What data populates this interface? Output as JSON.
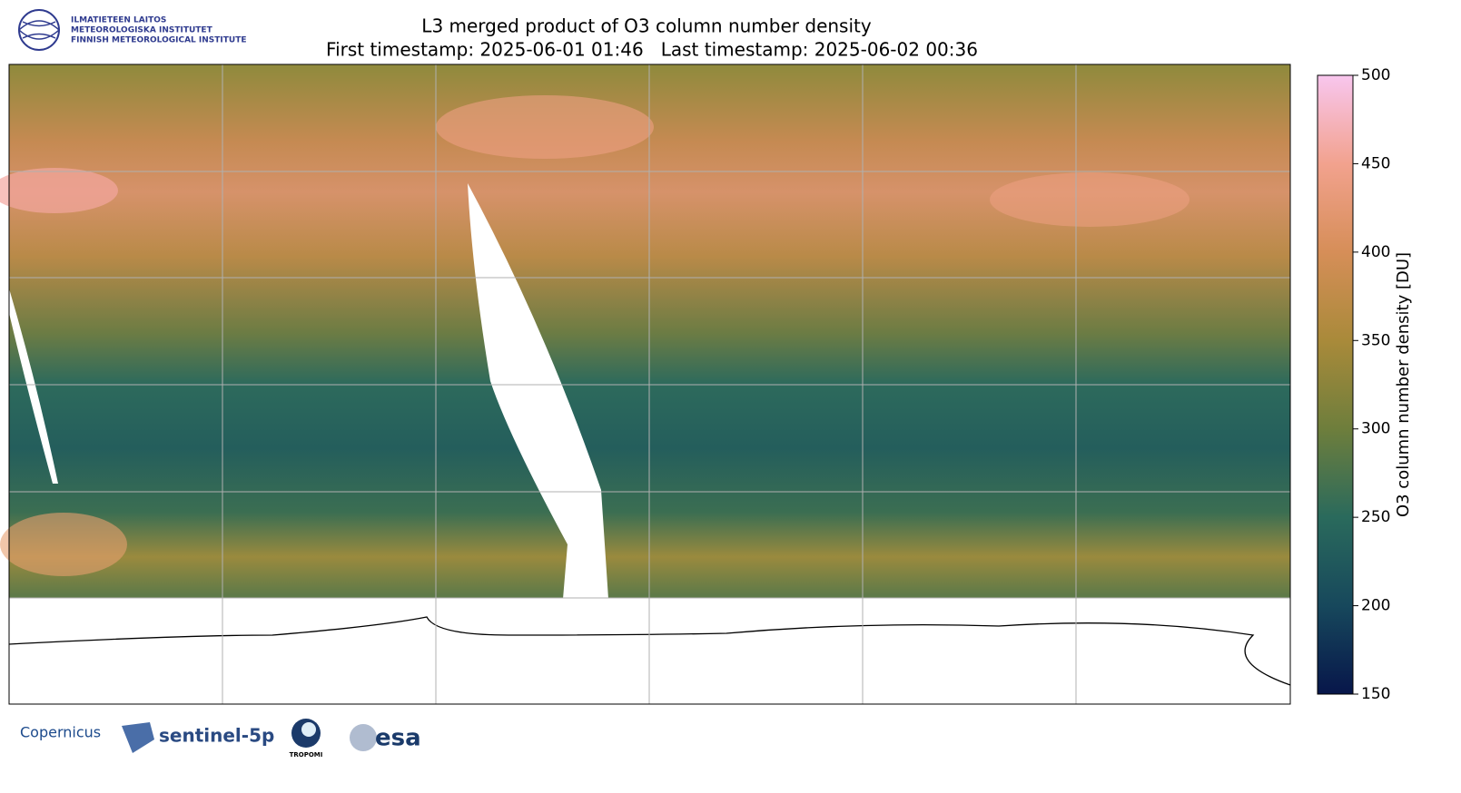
{
  "header": {
    "logo_lines": [
      "ILMATIETEEN LAITOS",
      "METEOROLOGISKA INSTITUTET",
      "FINNISH METEOROLOGICAL INSTITUTE"
    ]
  },
  "map": {
    "title": "L3 merged product of O3 column number density",
    "subtitle": "First timestamp: 2025-06-01 01:46   Last timestamp: 2025-06-02 00:36"
  },
  "colorbar": {
    "label": "O3 column number density [DU]",
    "lim": [
      150,
      500
    ],
    "ticks": [
      150,
      200,
      250,
      300,
      350,
      400,
      450,
      500
    ],
    "colors": [
      "#07164a",
      "#17485c",
      "#2a6a5c",
      "#6e7e3c",
      "#a98a3a",
      "#d68e58",
      "#f2a28e",
      "#f8c6ee"
    ]
  },
  "footer": {
    "logos": [
      "Copernicus",
      "sentinel-5p",
      "TROPOMI",
      "esa"
    ]
  }
}
